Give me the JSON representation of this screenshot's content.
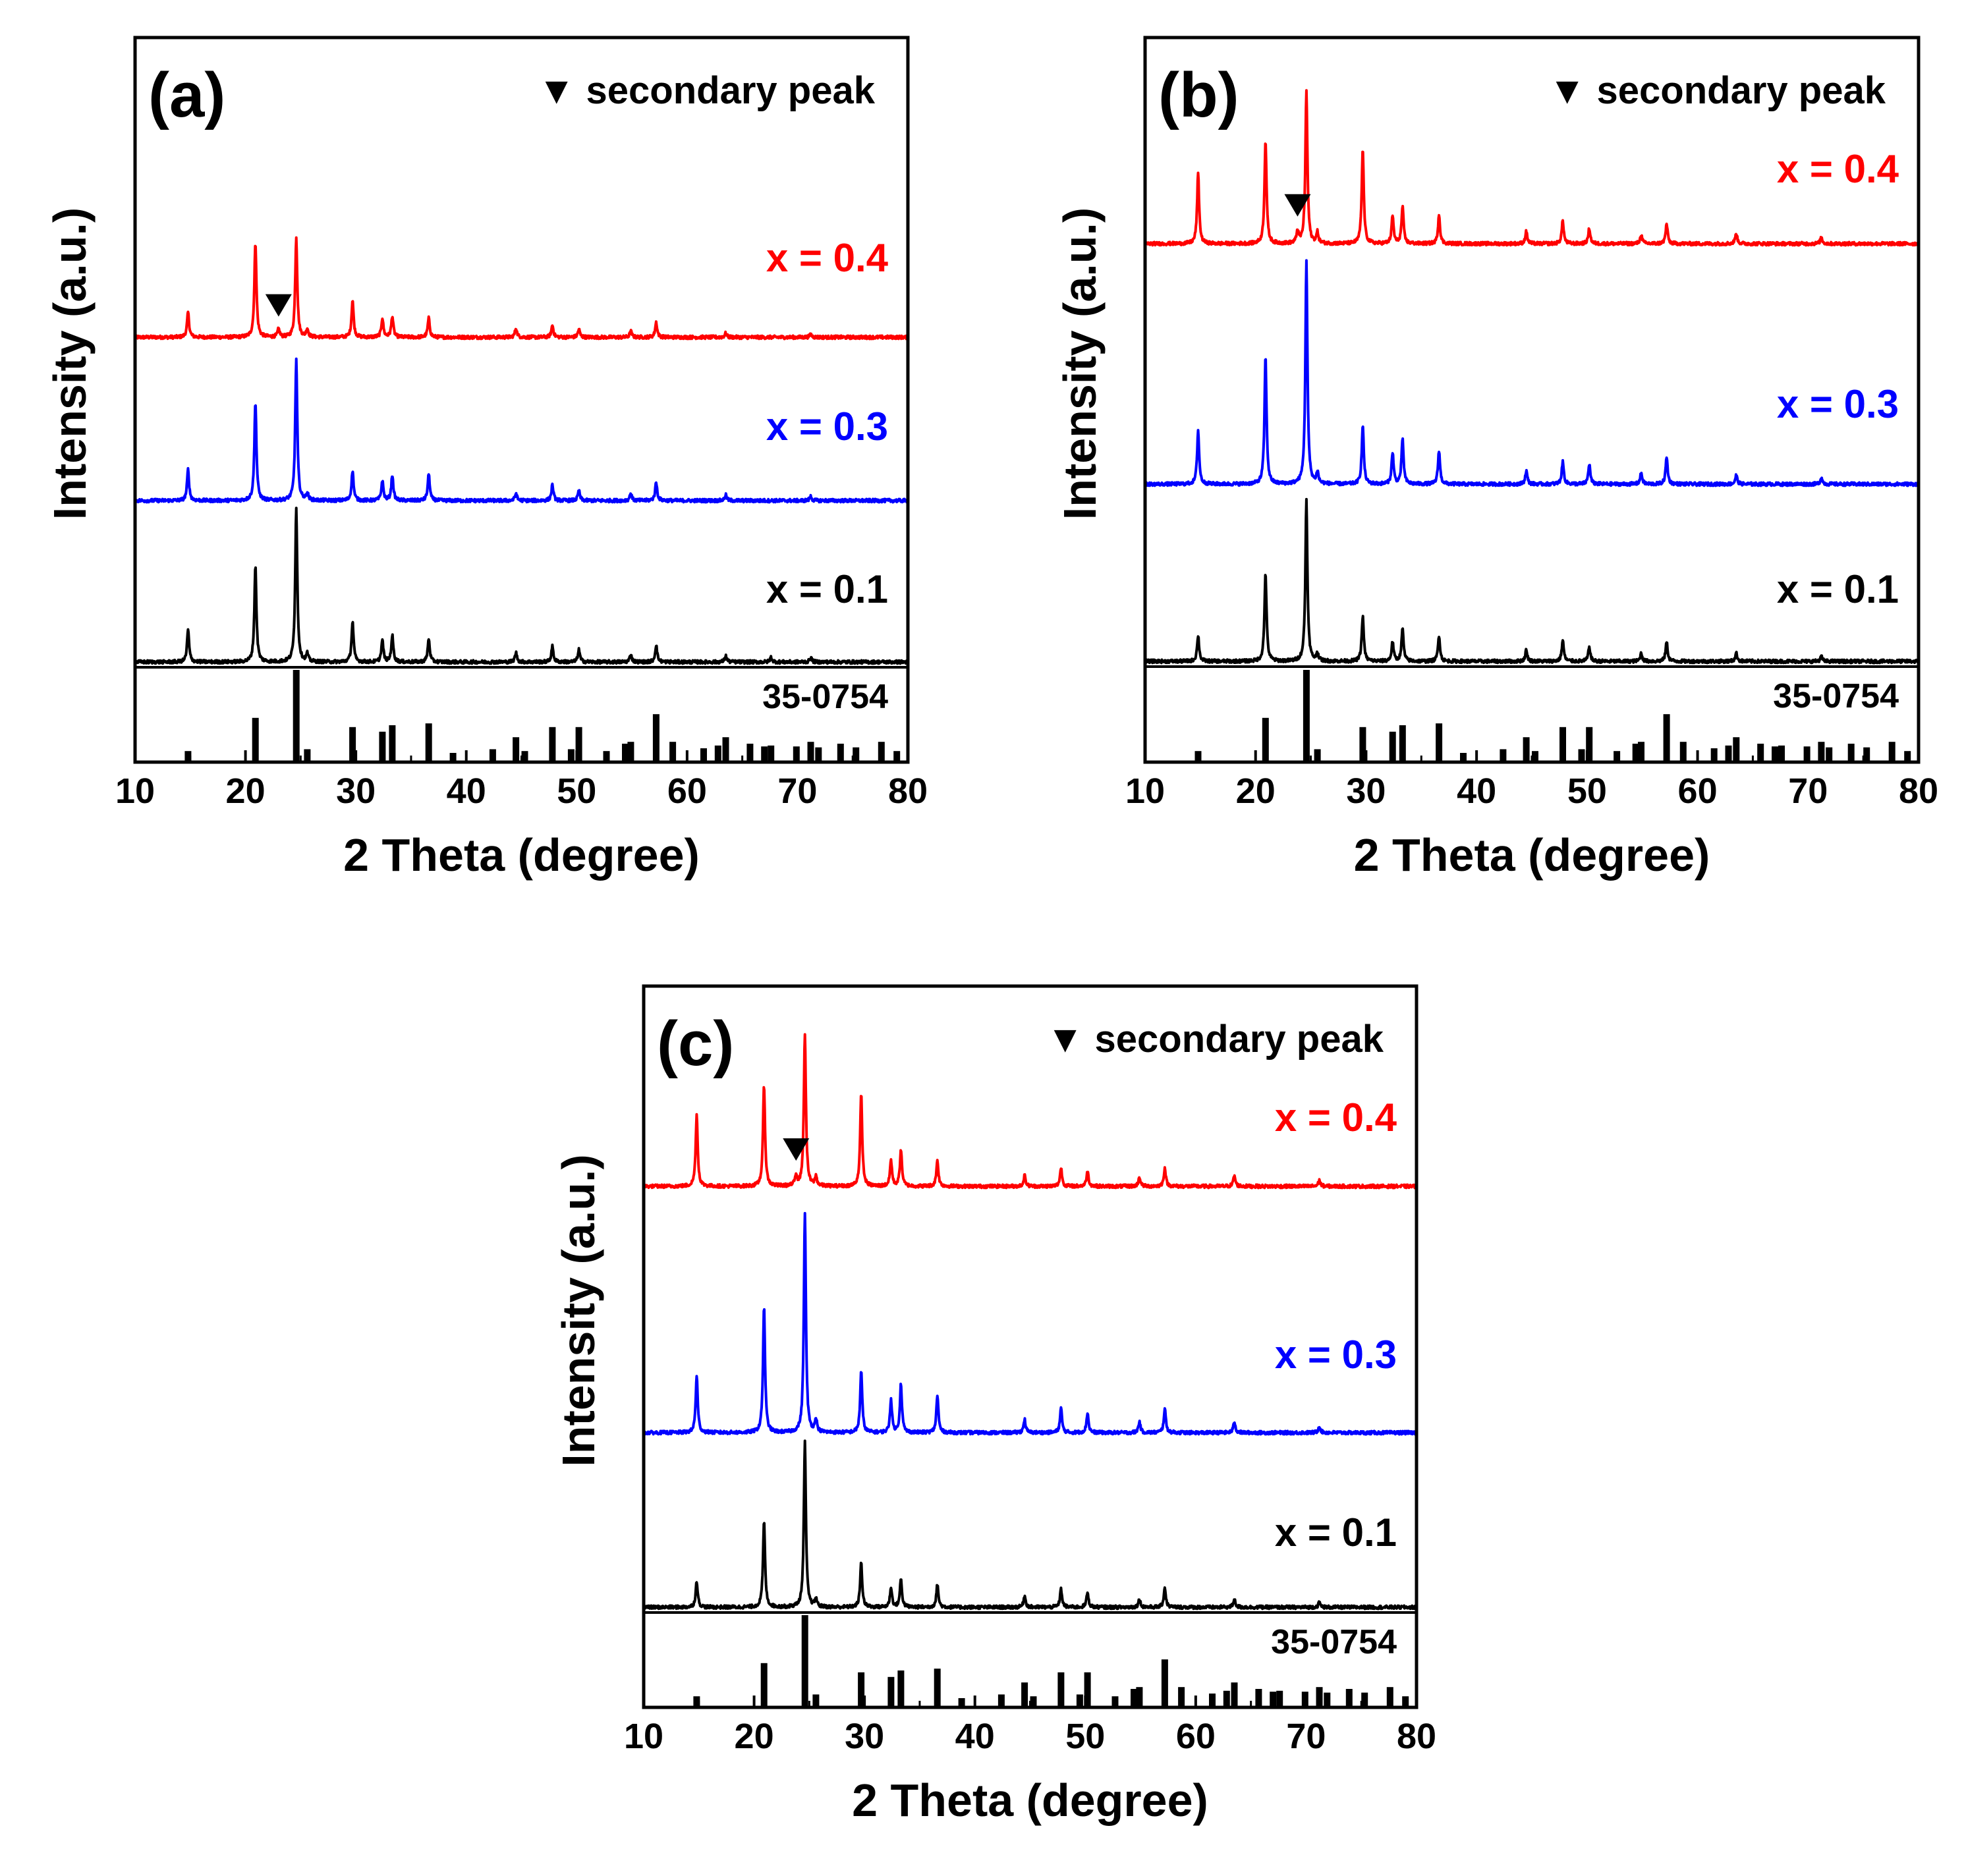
{
  "chart_data": [
    {
      "type": "line",
      "panel": "(a)",
      "xlabel": "2 Theta (degree)",
      "ylabel": "Intensity (a.u.)",
      "xlim": [
        10,
        80
      ],
      "xticks": [
        10,
        20,
        30,
        40,
        50,
        60,
        70,
        80
      ],
      "legend": "▼ secondary peak",
      "reference_label": "35-0754",
      "series": [
        {
          "name": "x = 0.4",
          "color": "#ff0000",
          "peak_scale": 0.55,
          "peaks": [
            [
              14.8,
              0.25
            ],
            [
              20.9,
              0.95
            ],
            [
              23.0,
              0.08
            ],
            [
              24.6,
              1.0
            ],
            [
              25.6,
              0.08
            ],
            [
              29.7,
              0.37
            ],
            [
              32.4,
              0.19
            ],
            [
              33.3,
              0.21
            ],
            [
              36.6,
              0.19
            ],
            [
              44.5,
              0.09
            ],
            [
              47.8,
              0.12
            ],
            [
              50.2,
              0.08
            ],
            [
              54.9,
              0.06
            ],
            [
              57.2,
              0.15
            ],
            [
              63.5,
              0.04
            ],
            [
              71.2,
              0.03
            ]
          ],
          "secondary_peak_x": 23.0
        },
        {
          "name": "x = 0.3",
          "color": "#0000ff",
          "peak_scale": 0.8,
          "peaks": [
            [
              14.8,
              0.22
            ],
            [
              20.9,
              0.7
            ],
            [
              24.6,
              1.0
            ],
            [
              25.6,
              0.05
            ],
            [
              29.7,
              0.21
            ],
            [
              32.4,
              0.14
            ],
            [
              33.3,
              0.18
            ],
            [
              36.6,
              0.19
            ],
            [
              44.5,
              0.05
            ],
            [
              47.8,
              0.11
            ],
            [
              50.2,
              0.07
            ],
            [
              54.9,
              0.05
            ],
            [
              57.2,
              0.13
            ],
            [
              63.5,
              0.04
            ],
            [
              71.2,
              0.03
            ]
          ]
        },
        {
          "name": "x = 0.1",
          "color": "#000000",
          "peak_scale": 0.85,
          "peaks": [
            [
              14.8,
              0.21
            ],
            [
              20.9,
              0.62
            ],
            [
              24.6,
              1.0
            ],
            [
              25.6,
              0.05
            ],
            [
              29.7,
              0.26
            ],
            [
              32.4,
              0.14
            ],
            [
              33.3,
              0.17
            ],
            [
              36.6,
              0.15
            ],
            [
              44.5,
              0.06
            ],
            [
              47.8,
              0.1
            ],
            [
              50.2,
              0.08
            ],
            [
              54.9,
              0.05
            ],
            [
              57.2,
              0.11
            ],
            [
              63.5,
              0.04
            ],
            [
              67.6,
              0.03
            ],
            [
              71.2,
              0.03
            ]
          ]
        }
      ]
    },
    {
      "type": "line",
      "panel": "(b)",
      "xlabel": "2 Theta (degree)",
      "ylabel": "Intensity (a.u.)",
      "xlim": [
        10,
        80
      ],
      "xticks": [
        10,
        20,
        30,
        40,
        50,
        60,
        70,
        80
      ],
      "legend": "▼ secondary peak",
      "reference_label": "35-0754",
      "series": [
        {
          "name": "x = 0.4",
          "color": "#ff0000",
          "peak_scale": 0.8,
          "peaks": [
            [
              14.8,
              0.46
            ],
            [
              20.9,
              0.68
            ],
            [
              23.8,
              0.08
            ],
            [
              24.6,
              1.0
            ],
            [
              25.6,
              0.07
            ],
            [
              29.7,
              0.62
            ],
            [
              32.4,
              0.18
            ],
            [
              33.3,
              0.24
            ],
            [
              36.6,
              0.19
            ],
            [
              44.5,
              0.08
            ],
            [
              47.8,
              0.15
            ],
            [
              50.2,
              0.1
            ],
            [
              54.9,
              0.06
            ],
            [
              57.2,
              0.13
            ],
            [
              63.5,
              0.07
            ],
            [
              71.2,
              0.04
            ]
          ],
          "secondary_peak_x": 23.8
        },
        {
          "name": "x = 0.3",
          "color": "#0000ff",
          "peak_scale": 1.15,
          "peaks": [
            [
              14.8,
              0.24
            ],
            [
              20.9,
              0.57
            ],
            [
              24.6,
              1.0
            ],
            [
              25.6,
              0.05
            ],
            [
              29.7,
              0.26
            ],
            [
              32.4,
              0.14
            ],
            [
              33.3,
              0.2
            ],
            [
              36.6,
              0.15
            ],
            [
              44.5,
              0.06
            ],
            [
              47.8,
              0.1
            ],
            [
              50.2,
              0.09
            ],
            [
              54.9,
              0.05
            ],
            [
              57.2,
              0.12
            ],
            [
              63.5,
              0.04
            ],
            [
              71.2,
              0.03
            ]
          ]
        },
        {
          "name": "x = 0.1",
          "color": "#000000",
          "peak_scale": 0.9,
          "peaks": [
            [
              14.8,
              0.16
            ],
            [
              20.9,
              0.55
            ],
            [
              24.6,
              1.0
            ],
            [
              25.6,
              0.05
            ],
            [
              29.7,
              0.28
            ],
            [
              32.4,
              0.12
            ],
            [
              33.3,
              0.2
            ],
            [
              36.6,
              0.16
            ],
            [
              44.5,
              0.07
            ],
            [
              47.8,
              0.13
            ],
            [
              50.2,
              0.09
            ],
            [
              54.9,
              0.05
            ],
            [
              57.2,
              0.12
            ],
            [
              63.5,
              0.05
            ],
            [
              71.2,
              0.03
            ]
          ]
        }
      ]
    },
    {
      "type": "line",
      "panel": "(c)",
      "xlabel": "2 Theta (degree)",
      "ylabel": "Intensity (a.u.)",
      "xlim": [
        10,
        80
      ],
      "xticks": [
        10,
        20,
        30,
        40,
        50,
        60,
        70,
        80
      ],
      "legend": "▼ secondary peak",
      "reference_label": "35-0754",
      "series": [
        {
          "name": "x = 0.4",
          "color": "#ff0000",
          "peak_scale": 0.82,
          "peaks": [
            [
              14.8,
              0.47
            ],
            [
              20.9,
              0.66
            ],
            [
              23.8,
              0.07
            ],
            [
              24.6,
              1.0
            ],
            [
              25.6,
              0.06
            ],
            [
              29.7,
              0.6
            ],
            [
              32.4,
              0.17
            ],
            [
              33.3,
              0.24
            ],
            [
              36.6,
              0.17
            ],
            [
              44.5,
              0.07
            ],
            [
              47.8,
              0.12
            ],
            [
              50.2,
              0.1
            ],
            [
              54.9,
              0.06
            ],
            [
              57.2,
              0.12
            ],
            [
              63.5,
              0.07
            ],
            [
              71.2,
              0.04
            ]
          ],
          "secondary_peak_x": 23.8
        },
        {
          "name": "x = 0.3",
          "color": "#0000ff",
          "peak_scale": 1.2,
          "peaks": [
            [
              14.8,
              0.26
            ],
            [
              20.9,
              0.57
            ],
            [
              24.6,
              1.0
            ],
            [
              25.6,
              0.06
            ],
            [
              29.7,
              0.28
            ],
            [
              32.4,
              0.15
            ],
            [
              33.3,
              0.22
            ],
            [
              36.6,
              0.17
            ],
            [
              44.5,
              0.06
            ],
            [
              47.8,
              0.11
            ],
            [
              50.2,
              0.09
            ],
            [
              54.9,
              0.05
            ],
            [
              57.2,
              0.11
            ],
            [
              63.5,
              0.05
            ],
            [
              71.2,
              0.03
            ]
          ]
        },
        {
          "name": "x = 0.1",
          "color": "#000000",
          "peak_scale": 0.95,
          "peaks": [
            [
              14.8,
              0.16
            ],
            [
              20.9,
              0.52
            ],
            [
              24.6,
              1.0
            ],
            [
              25.6,
              0.05
            ],
            [
              29.7,
              0.27
            ],
            [
              32.4,
              0.12
            ],
            [
              33.3,
              0.17
            ],
            [
              36.6,
              0.14
            ],
            [
              44.5,
              0.07
            ],
            [
              47.8,
              0.11
            ],
            [
              50.2,
              0.09
            ],
            [
              54.9,
              0.05
            ],
            [
              57.2,
              0.12
            ],
            [
              63.5,
              0.05
            ],
            [
              71.2,
              0.03
            ]
          ]
        }
      ]
    }
  ],
  "reference_pattern": {
    "name": "35-0754",
    "sticks": [
      [
        14.8,
        0.12
      ],
      [
        20.9,
        0.48
      ],
      [
        24.6,
        1.0
      ],
      [
        25.6,
        0.14
      ],
      [
        29.7,
        0.38
      ],
      [
        32.4,
        0.33
      ],
      [
        33.3,
        0.4
      ],
      [
        36.6,
        0.42
      ],
      [
        38.8,
        0.1
      ],
      [
        42.4,
        0.14
      ],
      [
        44.5,
        0.27
      ],
      [
        45.3,
        0.12
      ],
      [
        47.8,
        0.38
      ],
      [
        49.5,
        0.14
      ],
      [
        50.2,
        0.38
      ],
      [
        52.7,
        0.12
      ],
      [
        54.4,
        0.2
      ],
      [
        54.9,
        0.22
      ],
      [
        57.2,
        0.52
      ],
      [
        58.7,
        0.22
      ],
      [
        61.5,
        0.15
      ],
      [
        62.8,
        0.18
      ],
      [
        63.5,
        0.27
      ],
      [
        65.7,
        0.2
      ],
      [
        67.0,
        0.17
      ],
      [
        67.6,
        0.18
      ],
      [
        69.9,
        0.17
      ],
      [
        71.2,
        0.22
      ],
      [
        71.9,
        0.16
      ],
      [
        73.9,
        0.2
      ],
      [
        75.3,
        0.16
      ],
      [
        77.6,
        0.22
      ],
      [
        79.0,
        0.12
      ]
    ]
  }
}
